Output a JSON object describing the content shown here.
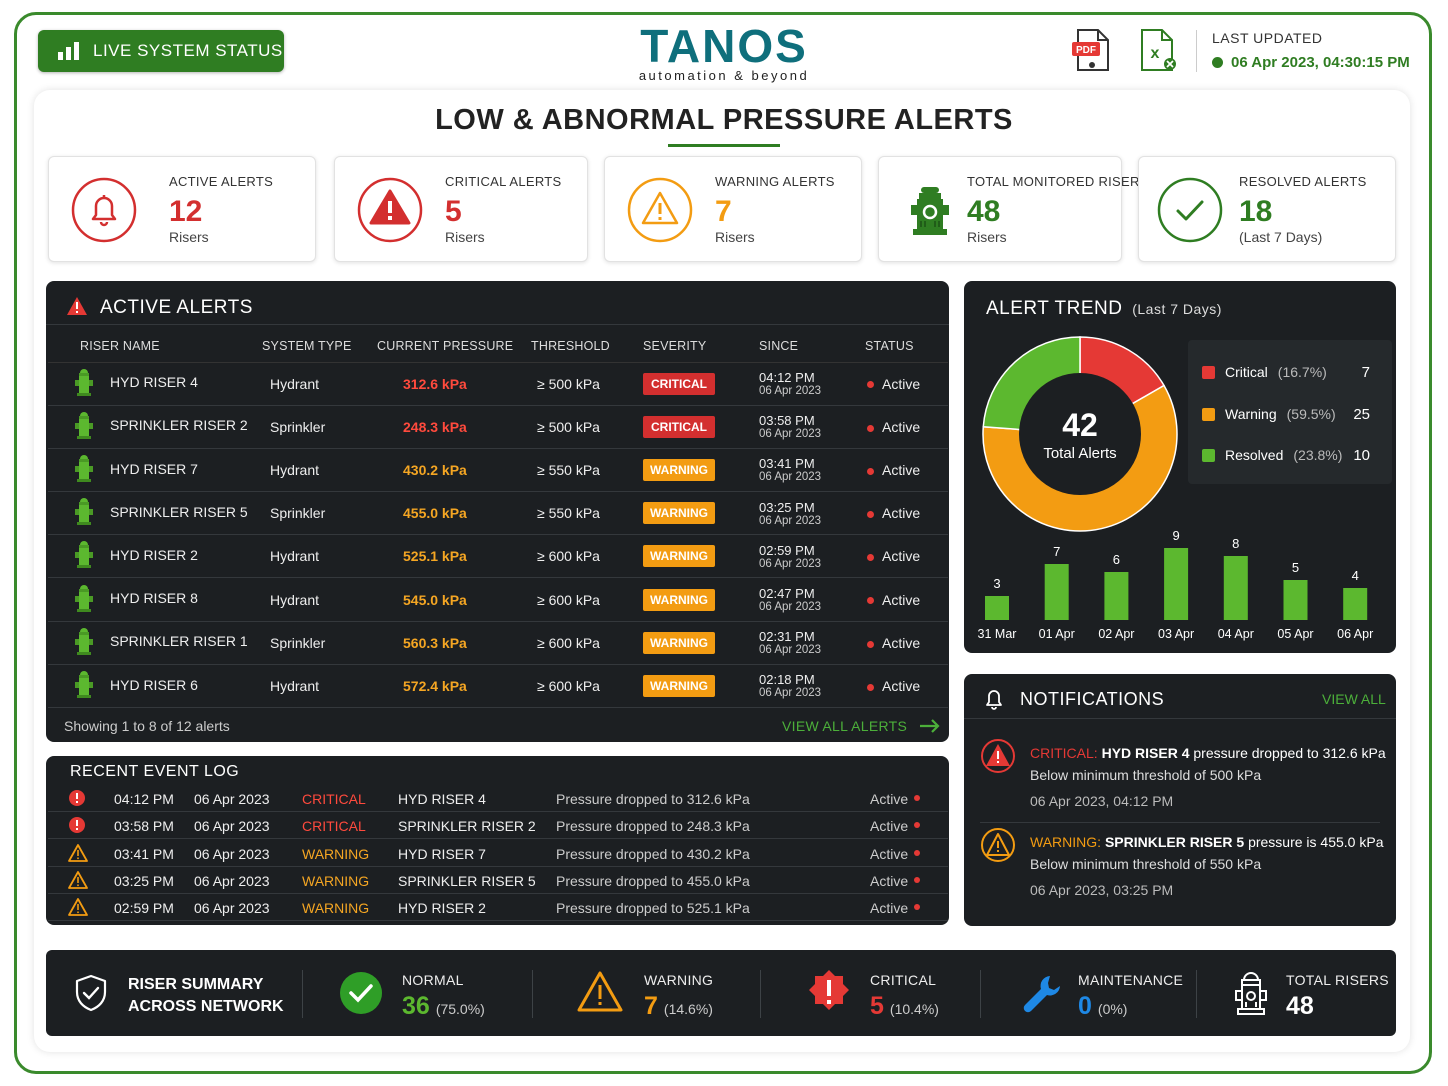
{
  "header": {
    "live_status": "LIVE SYSTEM STATUS",
    "logo_name": "TANOS",
    "logo_tagline": "automation & beyond",
    "pdf_label": "PDF",
    "last_updated_label": "LAST UPDATED",
    "last_updated_value": "06 Apr 2023, 04:30:15 PM"
  },
  "page_title": "LOW & ABNORMAL PRESSURE ALERTS",
  "kpis": [
    {
      "label": "ACTIVE ALERTS",
      "value": "12",
      "sub": "Risers",
      "color": "#d32f2f",
      "icon": "bell-icon"
    },
    {
      "label": "CRITICAL ALERTS",
      "value": "5",
      "sub": "Risers",
      "color": "#d32f2f",
      "icon": "alert-triangle-icon"
    },
    {
      "label": "WARNING ALERTS",
      "value": "7",
      "sub": "Risers",
      "color": "#f39c12",
      "icon": "warning-triangle-icon"
    },
    {
      "label": "TOTAL MONITORED RISERS",
      "value": "48",
      "sub": "Risers",
      "color": "#2f7d22",
      "icon": "hydrant-icon"
    },
    {
      "label": "RESOLVED ALERTS",
      "value": "18",
      "sub": "(Last 7 Days)",
      "color": "#2f7d22",
      "icon": "check-circle-icon"
    }
  ],
  "active_alerts": {
    "title": "ACTIVE ALERTS",
    "columns": [
      "RISER NAME",
      "SYSTEM TYPE",
      "CURRENT PRESSURE",
      "THRESHOLD",
      "SEVERITY",
      "SINCE",
      "STATUS"
    ],
    "rows": [
      {
        "name": "HYD RISER 4",
        "type": "Hydrant",
        "pressure": "312.6 kPa",
        "threshold": "≥ 500 kPa",
        "severity": "CRITICAL",
        "time": "04:12 PM",
        "date": "06 Apr 2023",
        "status": "Active"
      },
      {
        "name": "SPRINKLER RISER 2",
        "type": "Sprinkler",
        "pressure": "248.3 kPa",
        "threshold": "≥ 500 kPa",
        "severity": "CRITICAL",
        "time": "03:58 PM",
        "date": "06 Apr 2023",
        "status": "Active"
      },
      {
        "name": "HYD RISER 7",
        "type": "Hydrant",
        "pressure": "430.2 kPa",
        "threshold": "≥ 550 kPa",
        "severity": "WARNING",
        "time": "03:41 PM",
        "date": "06 Apr 2023",
        "status": "Active"
      },
      {
        "name": "SPRINKLER RISER 5",
        "type": "Sprinkler",
        "pressure": "455.0 kPa",
        "threshold": "≥ 550 kPa",
        "severity": "WARNING",
        "time": "03:25 PM",
        "date": "06 Apr 2023",
        "status": "Active"
      },
      {
        "name": "HYD RISER 2",
        "type": "Hydrant",
        "pressure": "525.1 kPa",
        "threshold": "≥ 600 kPa",
        "severity": "WARNING",
        "time": "02:59 PM",
        "date": "06 Apr 2023",
        "status": "Active"
      },
      {
        "name": "HYD RISER 8",
        "type": "Hydrant",
        "pressure": "545.0 kPa",
        "threshold": "≥ 600 kPa",
        "severity": "WARNING",
        "time": "02:47 PM",
        "date": "06 Apr 2023",
        "status": "Active"
      },
      {
        "name": "SPRINKLER RISER 1",
        "type": "Sprinkler",
        "pressure": "560.3 kPa",
        "threshold": "≥ 600 kPa",
        "severity": "WARNING",
        "time": "02:31 PM",
        "date": "06 Apr 2023",
        "status": "Active"
      },
      {
        "name": "HYD RISER 6",
        "type": "Hydrant",
        "pressure": "572.4 kPa",
        "threshold": "≥ 600 kPa",
        "severity": "WARNING",
        "time": "02:18 PM",
        "date": "06 Apr 2023",
        "status": "Active"
      }
    ],
    "showing_text": "Showing 1 to 8 of 12 alerts",
    "view_all_label": "VIEW ALL ALERTS"
  },
  "event_log": {
    "title": "RECENT EVENT LOG",
    "rows": [
      {
        "time": "04:12 PM",
        "date": "06 Apr 2023",
        "severity": "CRITICAL",
        "riser": "HYD RISER 4",
        "message": "Pressure dropped to 312.6 kPa",
        "status": "Active"
      },
      {
        "time": "03:58 PM",
        "date": "06 Apr 2023",
        "severity": "CRITICAL",
        "riser": "SPRINKLER RISER 2",
        "message": "Pressure dropped to 248.3 kPa",
        "status": "Active"
      },
      {
        "time": "03:41 PM",
        "date": "06 Apr 2023",
        "severity": "WARNING",
        "riser": "HYD RISER 7",
        "message": "Pressure dropped to 430.2 kPa",
        "status": "Active"
      },
      {
        "time": "03:25 PM",
        "date": "06 Apr 2023",
        "severity": "WARNING",
        "riser": "SPRINKLER RISER 5",
        "message": "Pressure dropped to 455.0 kPa",
        "status": "Active"
      },
      {
        "time": "02:59 PM",
        "date": "06 Apr 2023",
        "severity": "WARNING",
        "riser": "HYD RISER 2",
        "message": "Pressure dropped to 525.1 kPa",
        "status": "Active"
      }
    ]
  },
  "alert_trend": {
    "title": "ALERT TREND",
    "subtitle": "(Last 7 Days)",
    "total": "42",
    "total_label": "Total Alerts",
    "legend": [
      {
        "name": "Critical",
        "pct": "(16.7%)",
        "count": "7",
        "color": "#e53935"
      },
      {
        "name": "Warning",
        "pct": "(59.5%)",
        "count": "25",
        "color": "#f39c12"
      },
      {
        "name": "Resolved",
        "pct": "(23.8%)",
        "count": "10",
        "color": "#5cb82f"
      }
    ]
  },
  "chart_data": [
    {
      "type": "pie",
      "categories": [
        "Critical",
        "Warning",
        "Resolved"
      ],
      "values": [
        7,
        25,
        10
      ],
      "title": "ALERT TREND"
    },
    {
      "type": "bar",
      "categories": [
        "31 Mar",
        "01 Apr",
        "02 Apr",
        "03 Apr",
        "04 Apr",
        "05 Apr",
        "06 Apr"
      ],
      "values": [
        3,
        7,
        6,
        9,
        8,
        5,
        4
      ],
      "ylim": [
        0,
        10
      ],
      "grid": false
    }
  ],
  "notifications": {
    "title": "NOTIFICATIONS",
    "view_all": "VIEW ALL",
    "items": [
      {
        "prefix": "CRITICAL:",
        "riser": "HYD RISER 4",
        "text": " pressure dropped to 312.6 kPa",
        "detail": "Below minimum threshold of 500 kPa",
        "time": "06 Apr 2023, 04:12 PM",
        "color": "#e53935"
      },
      {
        "prefix": "WARNING:",
        "riser": "SPRINKLER RISER 5",
        "text": " pressure is 455.0 kPa",
        "detail": "Below minimum threshold of 550 kPa",
        "time": "06 Apr 2023, 03:25 PM",
        "color": "#f39c12"
      }
    ]
  },
  "summary": {
    "title_line1": "RISER SUMMARY",
    "title_line2": "ACROSS NETWORK",
    "normal": {
      "label": "NORMAL",
      "value": "36",
      "pct": "(75.0%)"
    },
    "warning": {
      "label": "WARNING",
      "value": "7",
      "pct": "(14.6%)"
    },
    "critical": {
      "label": "CRITICAL",
      "value": "5",
      "pct": "(10.4%)"
    },
    "maintenance": {
      "label": "MAINTENANCE",
      "value": "0",
      "pct": "(0%)"
    },
    "total": {
      "label": "TOTAL RISERS",
      "value": "48"
    }
  }
}
